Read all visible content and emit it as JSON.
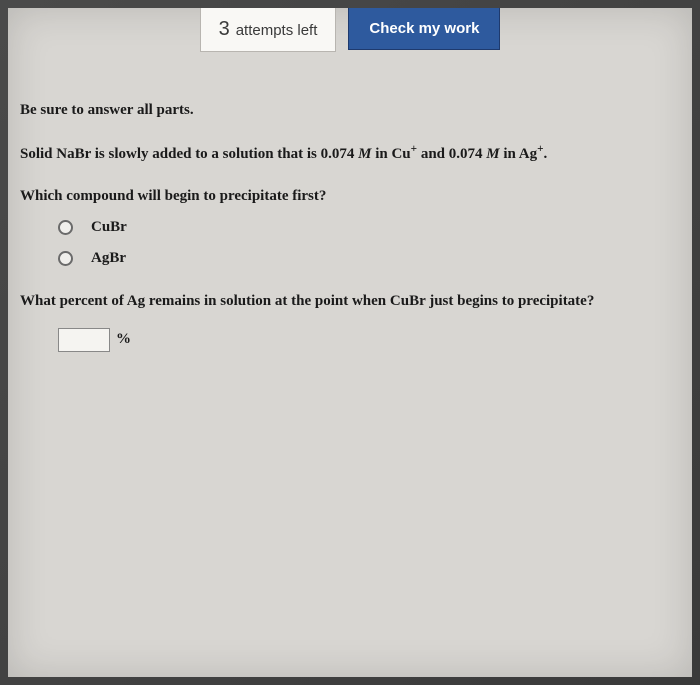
{
  "header": {
    "attempts_number": "3",
    "attempts_text": "attempts left",
    "check_button": "Check my work"
  },
  "body": {
    "instruction": "Be sure to answer all parts.",
    "prompt_prefix": "Solid NaBr is slowly added to a solution that is 0.074 ",
    "prompt_M1": "M",
    "prompt_mid1": " in Cu",
    "prompt_sup1": "+",
    "prompt_mid2": " and 0.074 ",
    "prompt_M2": "M",
    "prompt_mid3": " in Ag",
    "prompt_sup2": "+",
    "prompt_end": ".",
    "question1": "Which compound will begin to precipitate first?",
    "options": [
      {
        "label": "CuBr"
      },
      {
        "label": "AgBr"
      }
    ],
    "question2": "What percent of Ag remains in solution at the point when CuBr just begins to precipitate?",
    "percent_value": "",
    "percent_sign": "%"
  },
  "colors": {
    "page_bg": "#d8d6d2",
    "button_bg": "#2e5a9e",
    "button_text": "#ffffff",
    "text": "#1a1a1a"
  }
}
